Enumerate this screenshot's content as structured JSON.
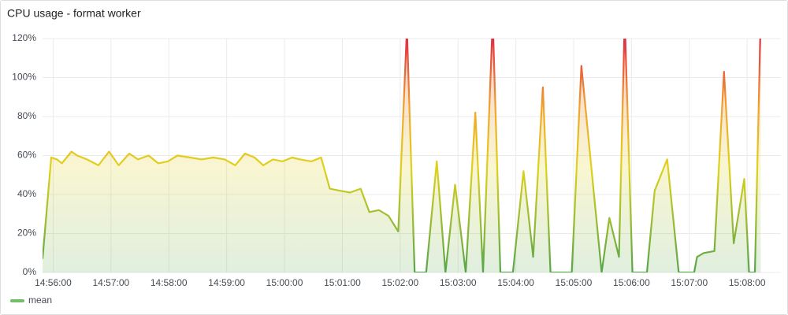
{
  "chart_data": {
    "type": "line",
    "title": "CPU usage - format worker",
    "x": [
      "14:55:49",
      "14:55:58",
      "14:56:04",
      "14:56:09",
      "14:56:19",
      "14:56:25",
      "14:56:35",
      "14:56:47",
      "14:56:58",
      "14:57:08",
      "14:57:19",
      "14:57:28",
      "14:57:39",
      "14:57:49",
      "14:57:59",
      "14:58:09",
      "14:58:22",
      "14:58:34",
      "14:58:46",
      "14:58:58",
      "14:59:09",
      "14:59:19",
      "14:59:29",
      "14:59:38",
      "14:59:48",
      "14:59:58",
      "15:00:08",
      "15:00:16",
      "15:00:28",
      "15:00:38",
      "15:00:47",
      "15:00:57",
      "15:01:08",
      "15:01:19",
      "15:01:28",
      "15:01:38",
      "15:01:48",
      "15:01:58",
      "15:02:07",
      "15:02:15",
      "15:02:27",
      "15:02:38",
      "15:02:47",
      "15:02:57",
      "15:03:08",
      "15:03:18",
      "15:03:26",
      "15:03:36",
      "15:03:44",
      "15:03:57",
      "15:04:08",
      "15:04:18",
      "15:04:28",
      "15:04:36",
      "15:04:58",
      "15:05:08",
      "15:05:29",
      "15:05:37",
      "15:05:47",
      "15:05:53",
      "15:06:01",
      "15:06:16",
      "15:06:24",
      "15:06:37",
      "15:06:49",
      "15:07:05",
      "15:07:08",
      "15:07:15",
      "15:07:26",
      "15:07:36",
      "15:07:46",
      "15:07:57",
      "15:08:02",
      "15:08:08",
      "15:08:14"
    ],
    "series": [
      {
        "name": "mean",
        "color": "#73bf69",
        "values": [
          7,
          59,
          58,
          56,
          62,
          60,
          58,
          55,
          62,
          55,
          61,
          58,
          60,
          56,
          57,
          60,
          59,
          58,
          59,
          58,
          55,
          61,
          59,
          55,
          58,
          57,
          59,
          58,
          57,
          59,
          43,
          42,
          41,
          43,
          31,
          32,
          29,
          21,
          125,
          0,
          0,
          57,
          0,
          45,
          0,
          82,
          0,
          130,
          0,
          0,
          52,
          8,
          95,
          0,
          0,
          106,
          0,
          28,
          8,
          130,
          0,
          0,
          42,
          58,
          0,
          0,
          8,
          10,
          11,
          103,
          15,
          48,
          0,
          0,
          130
        ]
      }
    ],
    "xlim": [
      "14:55:49",
      "15:08:35"
    ],
    "xticks": [
      "14:56:00",
      "14:57:00",
      "14:58:00",
      "14:59:00",
      "15:00:00",
      "15:01:00",
      "15:02:00",
      "15:03:00",
      "15:04:00",
      "15:05:00",
      "15:06:00",
      "15:07:00",
      "15:08:00"
    ],
    "ylim": [
      0,
      120
    ],
    "yticks": [
      {
        "value": 0,
        "label": "0%"
      },
      {
        "value": 20,
        "label": "20%"
      },
      {
        "value": 40,
        "label": "40%"
      },
      {
        "value": 60,
        "label": "60%"
      },
      {
        "value": 80,
        "label": "80%"
      },
      {
        "value": 100,
        "label": "100%"
      },
      {
        "value": 120,
        "label": "120%"
      }
    ],
    "grid": true
  }
}
